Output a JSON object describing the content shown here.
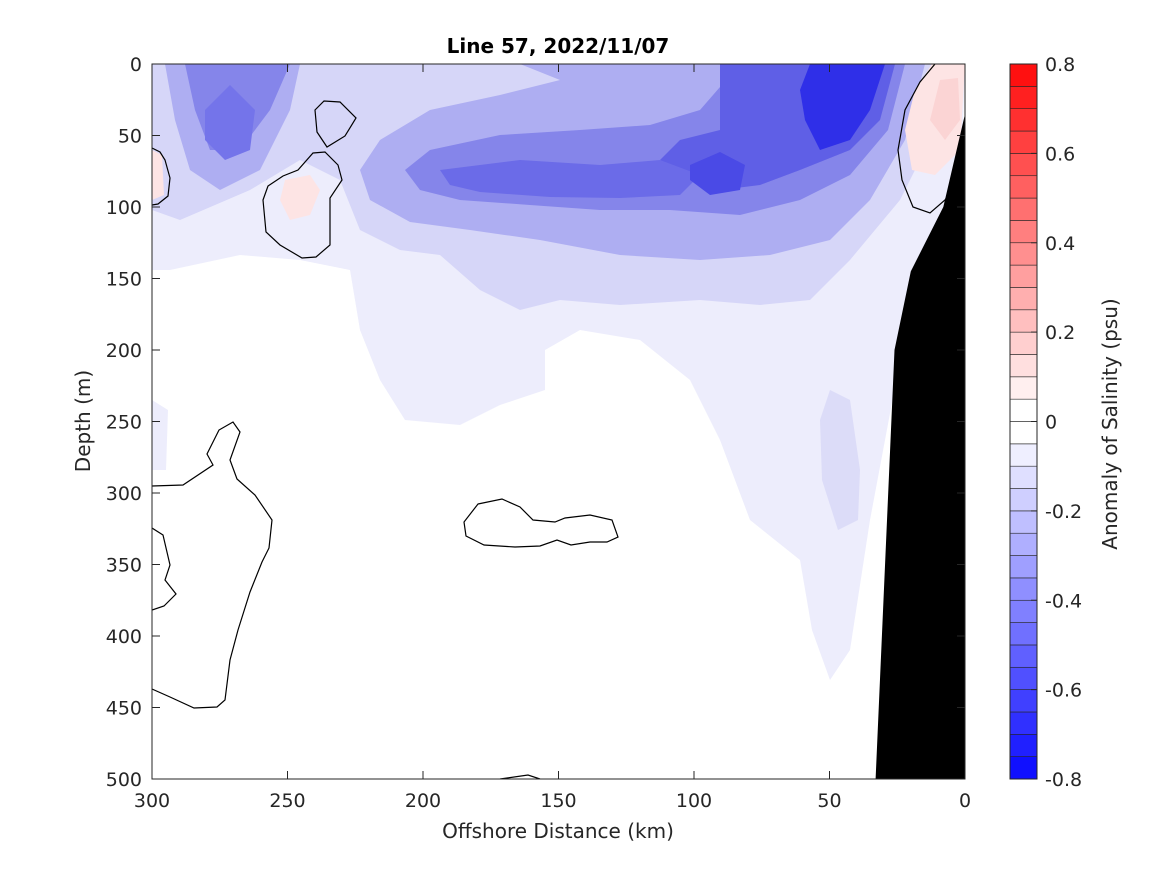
{
  "chart_data": {
    "type": "heatmap",
    "subtype": "filled-contour section",
    "title": "Line 57, 2022/11/07",
    "xlabel": "Offshore Distance (km)",
    "ylabel": "Depth (m)",
    "xlim": [
      300,
      0
    ],
    "x_reversed": true,
    "ylim": [
      0,
      500
    ],
    "y_reversed": true,
    "xticks": [
      "300",
      "250",
      "200",
      "150",
      "100",
      "50",
      "0"
    ],
    "yticks": [
      "0",
      "50",
      "100",
      "150",
      "200",
      "250",
      "300",
      "350",
      "400",
      "450",
      "500"
    ],
    "grid": false,
    "colorbar": {
      "label": "Anomaly of Salinity (psu)",
      "range": [
        -0.8,
        0.8
      ],
      "step": 0.05,
      "ticks": [
        "0.8",
        "0.6",
        "0.4",
        "0.2",
        "0",
        "-0.2",
        "-0.4",
        "-0.6",
        "-0.8"
      ],
      "colormap": "blue-white-red",
      "low_color": "#0000ff",
      "mid_color": "#ffffff",
      "high_color": "#ff0000"
    },
    "zero_contour_color": "#000000",
    "bathymetry_color": "#000000",
    "bathymetry": [
      {
        "x": 33,
        "depth": 500
      },
      {
        "x": 26,
        "depth": 200
      },
      {
        "x": 20,
        "depth": 145
      },
      {
        "x": 8,
        "depth": 100
      },
      {
        "x": 0,
        "depth": 35
      }
    ],
    "features": [
      {
        "label": "offshore fresh core",
        "x": 275,
        "depth": 50,
        "value": -0.35
      },
      {
        "label": "main fresh core",
        "x": 92,
        "depth": 80,
        "value": -0.5
      },
      {
        "label": "nearshore surface fresh core",
        "x": 45,
        "depth": 30,
        "value": -0.65
      },
      {
        "label": "subsurface fresh band",
        "x": 160,
        "depth": 85,
        "value": -0.45
      },
      {
        "label": "nearshore salty patch",
        "x": 8,
        "depth": 40,
        "value": 0.1
      },
      {
        "label": "offshore salty patch",
        "x": 245,
        "depth": 95,
        "value": 0.05
      },
      {
        "label": "edge salty patch",
        "x": 300,
        "depth": 75,
        "value": 0.05
      },
      {
        "label": "slope fresh lens",
        "x": 45,
        "depth": 300,
        "value": -0.15
      }
    ]
  }
}
